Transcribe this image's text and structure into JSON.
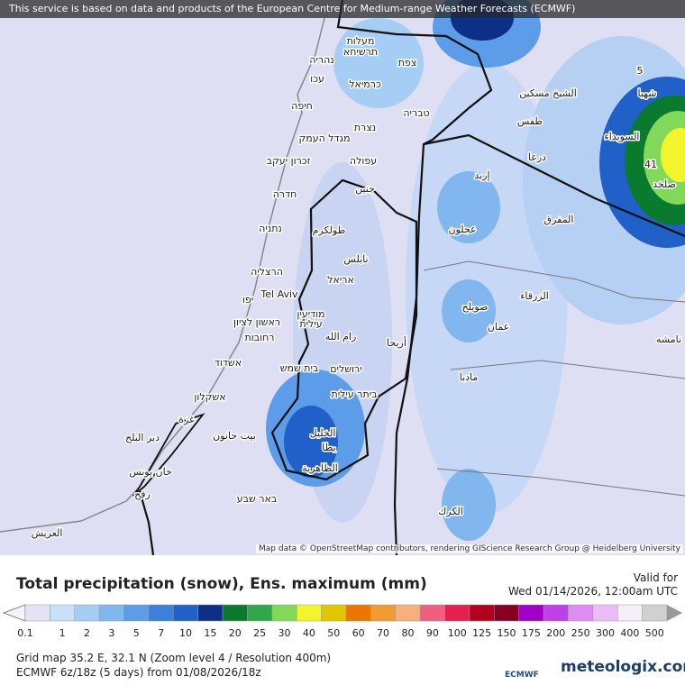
{
  "header": {
    "banner": "This service is based on data and products of the European Centre for Medium-range Weather Forecasts (ECMWF)"
  },
  "map": {
    "labels": [
      {
        "text": "מעלות"
      },
      {
        "text": "תרשיחא"
      },
      {
        "text": "נהריה"
      },
      {
        "text": "צפת"
      },
      {
        "text": "עכו"
      },
      {
        "text": "כרמיאל"
      },
      {
        "text": "חיפה"
      },
      {
        "text": "טבריה"
      },
      {
        "text": "נצרת"
      },
      {
        "text": "מגדל העמק"
      },
      {
        "text": "זכרון יעקב"
      },
      {
        "text": "עפולה"
      },
      {
        "text": "חדרה"
      },
      {
        "text": "جنين"
      },
      {
        "text": "נתניה"
      },
      {
        "text": "طولكرم"
      },
      {
        "text": "نابلس"
      },
      {
        "text": "הרצליה"
      },
      {
        "text": "Tel Aviv"
      },
      {
        "text": "יפו"
      },
      {
        "text": "אריאל"
      },
      {
        "text": "מודיעין"
      },
      {
        "text": "ראשון לציון"
      },
      {
        "text": "עילית"
      },
      {
        "text": "רחובות"
      },
      {
        "text": "رام الله"
      },
      {
        "text": "أريحا"
      },
      {
        "text": "אשדוד"
      },
      {
        "text": "בית שמש"
      },
      {
        "text": "ירושלים"
      },
      {
        "text": "ביתר עילית"
      },
      {
        "text": "אשקלון"
      },
      {
        "text": "غزة"
      },
      {
        "text": "دير البلح"
      },
      {
        "text": "بيت حانون"
      },
      {
        "text": "الخليل"
      },
      {
        "text": "يطا"
      },
      {
        "text": "الظاهرية"
      },
      {
        "text": "خان يونس"
      },
      {
        "text": "رفح"
      },
      {
        "text": "באר שבע"
      },
      {
        "text": "العريش"
      },
      {
        "text": "الشيخ مسكين"
      },
      {
        "text": "طفس"
      },
      {
        "text": "درعا"
      },
      {
        "text": "إربد"
      },
      {
        "text": "عجلون"
      },
      {
        "text": "المفرق"
      },
      {
        "text": "الزرقاء"
      },
      {
        "text": "صويلح"
      },
      {
        "text": "عمان"
      },
      {
        "text": "مادبا"
      },
      {
        "text": "الكرك"
      },
      {
        "text": "شهبا"
      },
      {
        "text": "السويداء"
      },
      {
        "text": "صلخد"
      },
      {
        "text": "5"
      },
      {
        "text": "41"
      },
      {
        "text": "نامشه"
      }
    ],
    "attribution": "Map data © OpenStreetMap contributors, rendering GIScience Research Group @ Heidelberg University"
  },
  "legend": {
    "title": "Total precipitation (snow), Ens. maximum (mm)",
    "valid_label": "Valid for",
    "valid_time": "Wed 01/14/2026, 12:00am UTC",
    "scale": [
      {
        "value": 0.1,
        "color": "#e4e4f4"
      },
      {
        "value": 1,
        "color": "#c8e0f8"
      },
      {
        "value": 2,
        "color": "#a6cdf4"
      },
      {
        "value": 3,
        "color": "#82b6ee"
      },
      {
        "value": 5,
        "color": "#5c9ce8"
      },
      {
        "value": 7,
        "color": "#3b80dc"
      },
      {
        "value": 10,
        "color": "#2060c8"
      },
      {
        "value": 15,
        "color": "#0e2f86"
      },
      {
        "value": 20,
        "color": "#0a7a2e"
      },
      {
        "value": 25,
        "color": "#2ea84a"
      },
      {
        "value": 30,
        "color": "#82d858"
      },
      {
        "value": 40,
        "color": "#f4f42c"
      },
      {
        "value": 50,
        "color": "#e2c600"
      },
      {
        "value": 60,
        "color": "#ee7600"
      },
      {
        "value": 70,
        "color": "#f49a34"
      },
      {
        "value": 80,
        "color": "#f6b07c"
      },
      {
        "value": 90,
        "color": "#ef5f82"
      },
      {
        "value": 100,
        "color": "#e6204c"
      },
      {
        "value": 125,
        "color": "#b4001a"
      },
      {
        "value": 150,
        "color": "#880020"
      },
      {
        "value": 175,
        "color": "#a000c8"
      },
      {
        "value": 200,
        "color": "#c040e8"
      },
      {
        "value": 250,
        "color": "#de8cf4"
      },
      {
        "value": 300,
        "color": "#ecbcf8"
      },
      {
        "value": 400,
        "color": "#f6eef8"
      },
      {
        "value": 500,
        "color": "#d0d0d0"
      }
    ]
  },
  "footer": {
    "grid": "Grid map 35.2 E, 32.1 N (Zoom level 4 / Resolution 400m)",
    "run": "ECMWF 6z/18z (5 days) from 01/08/2026/18z",
    "ecmwf": "ECMWF",
    "brand": "meteologix.com"
  }
}
